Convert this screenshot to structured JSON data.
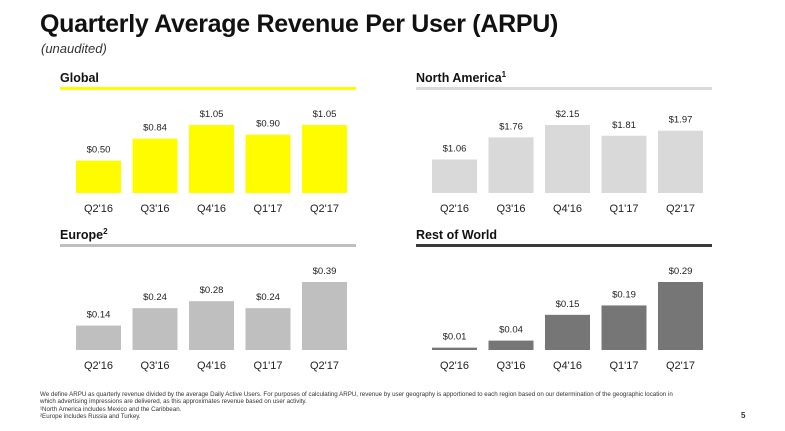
{
  "title": "Quarterly Average Revenue Per User (ARPU)",
  "subtitle": "(unaudited)",
  "footnotes": [
    "We define ARPU as quarterly revenue divided by the average Daily Active Users. For purposes of calculating ARPU, revenue by user geography is apportioned to each region based on our determination of the geographic location in",
    "which advertising impressions are delivered, as this approximates revenue based on user activity.",
    "¹North America includes Mexico and the Caribbean.",
    "²Europe includes Russia and Turkey."
  ],
  "page_number": "5",
  "colors": {
    "global": "#FFFC00",
    "north_america": "#D9D9D9",
    "europe": "#BFBFBF",
    "rest_of_world": "#767676",
    "dark_line": "#3A3A3A"
  },
  "chart_data": [
    {
      "type": "bar",
      "title": "Global",
      "title_sup": "",
      "categories": [
        "Q2'16",
        "Q3'16",
        "Q4'16",
        "Q1'17",
        "Q2'17"
      ],
      "values": [
        0.5,
        0.84,
        1.05,
        0.9,
        1.05
      ],
      "labels": [
        "$0.50",
        "$0.84",
        "$1.05",
        "$0.90",
        "$1.05"
      ],
      "ylim": [
        0,
        1.05
      ],
      "bar_color": "#FFFC00",
      "line_color": "#FFFC00"
    },
    {
      "type": "bar",
      "title": "North America",
      "title_sup": "1",
      "categories": [
        "Q2'16",
        "Q3'16",
        "Q4'16",
        "Q1'17",
        "Q2'17"
      ],
      "values": [
        1.06,
        1.76,
        2.15,
        1.81,
        1.97
      ],
      "labels": [
        "$1.06",
        "$1.76",
        "$2.15",
        "$1.81",
        "$1.97"
      ],
      "ylim": [
        0,
        2.15
      ],
      "bar_color": "#D9D9D9",
      "line_color": "#D9D9D9"
    },
    {
      "type": "bar",
      "title": "Europe",
      "title_sup": "2",
      "categories": [
        "Q2'16",
        "Q3'16",
        "Q4'16",
        "Q1'17",
        "Q2'17"
      ],
      "values": [
        0.14,
        0.24,
        0.28,
        0.24,
        0.39
      ],
      "labels": [
        "$0.14",
        "$0.24",
        "$0.28",
        "$0.24",
        "$0.39"
      ],
      "ylim": [
        0,
        0.39
      ],
      "bar_color": "#BFBFBF",
      "line_color": "#BFBFBF"
    },
    {
      "type": "bar",
      "title": "Rest of World",
      "title_sup": "",
      "categories": [
        "Q2'16",
        "Q3'16",
        "Q4'16",
        "Q1'17",
        "Q2'17"
      ],
      "values": [
        0.01,
        0.04,
        0.15,
        0.19,
        0.29
      ],
      "labels": [
        "$0.01",
        "$0.04",
        "$0.15",
        "$0.19",
        "$0.29"
      ],
      "ylim": [
        0,
        0.29
      ],
      "bar_color": "#767676",
      "line_color": "#3A3A3A"
    }
  ]
}
